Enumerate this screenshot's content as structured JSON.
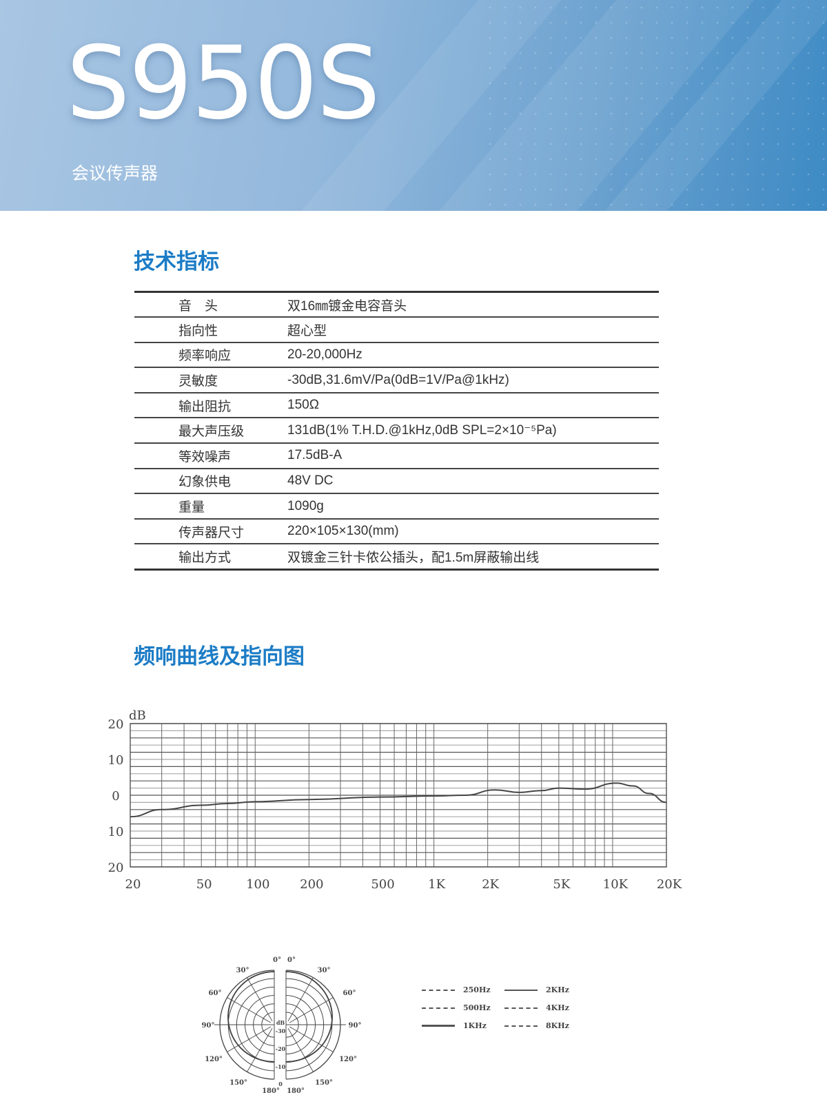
{
  "header": {
    "model": "S950S",
    "subtitle": "会议传声器",
    "colors": {
      "accent": "#1c7cc6",
      "hero_start": "#a9c6e3",
      "hero_end": "#3d8ac4"
    }
  },
  "specs_section": {
    "title": "技术指标",
    "rows": [
      {
        "label": "音　头",
        "value": "双16㎜镀金电容音头"
      },
      {
        "label": "指向性",
        "value": "超心型"
      },
      {
        "label": "频率响应",
        "value": "20-20,000Hz"
      },
      {
        "label": "灵敏度",
        "value": "-30dB,31.6mV/Pa(0dB=1V/Pa@1kHz)"
      },
      {
        "label": "输出阻抗",
        "value": "150Ω"
      },
      {
        "label": "最大声压级",
        "value": "131dB(1% T.H.D.@1kHz,0dB SPL=2×10⁻⁵Pa)"
      },
      {
        "label": "等效噪声",
        "value": "17.5dB-A"
      },
      {
        "label": "幻象供电",
        "value": "48V DC"
      },
      {
        "label": "重量",
        "value": "1090g"
      },
      {
        "label": "传声器尺寸",
        "value": "220×105×130(mm)"
      },
      {
        "label": "输出方式",
        "value": "双镀金三针卡侬公插头，配1.5m屏蔽输出线"
      }
    ]
  },
  "chart_section": {
    "title": "频响曲线及指向图"
  },
  "chart_data": {
    "type": "line",
    "ylabel": "dB",
    "x_scale": "log",
    "xlim": [
      20,
      20000
    ],
    "ylim": [
      -20,
      20
    ],
    "grid": true,
    "x_ticks": [
      {
        "v": 20,
        "label": "20"
      },
      {
        "v": 50,
        "label": "50"
      },
      {
        "v": 100,
        "label": "100"
      },
      {
        "v": 200,
        "label": "200"
      },
      {
        "v": 500,
        "label": "500"
      },
      {
        "v": 1000,
        "label": "1K"
      },
      {
        "v": 2000,
        "label": "2K"
      },
      {
        "v": 5000,
        "label": "5K"
      },
      {
        "v": 10000,
        "label": "10K"
      },
      {
        "v": 20000,
        "label": "20K"
      }
    ],
    "y_ticks": [
      {
        "v": 20,
        "label": "20"
      },
      {
        "v": 10,
        "label": "10"
      },
      {
        "v": 0,
        "label": "0"
      },
      {
        "v": -10,
        "label": "10"
      },
      {
        "v": -20,
        "label": "20"
      }
    ],
    "x": [
      20,
      30,
      50,
      70,
      100,
      200,
      500,
      1000,
      1500,
      2200,
      3000,
      4000,
      5000,
      7000,
      10500,
      13000,
      16000,
      20000
    ],
    "y": [
      -6,
      -4,
      -2.8,
      -2.3,
      -1.8,
      -1.2,
      -0.5,
      -0.2,
      0,
      1.5,
      0.8,
      1.3,
      2.0,
      1.7,
      3.4,
      2.6,
      0.5,
      -2
    ]
  },
  "polar": {
    "angle_labels": {
      "a0": "0°",
      "a30": "30°",
      "a60": "60°",
      "a90": "90°",
      "a120": "120°",
      "a150": "150°",
      "a180": "180°"
    },
    "ring_labels": {
      "db": "dB",
      "m30": "-30",
      "m20": "-20",
      "m10": "-10",
      "zero": "0"
    },
    "legend": [
      {
        "label": "250Hz",
        "style": "dashed"
      },
      {
        "label": "2KHz",
        "style": "solid"
      },
      {
        "label": "500Hz",
        "style": "dash-dot"
      },
      {
        "label": "4KHz",
        "style": "dashed"
      },
      {
        "label": "1KHz",
        "style": "solid"
      },
      {
        "label": "8KHz",
        "style": "dash-dot"
      }
    ]
  }
}
